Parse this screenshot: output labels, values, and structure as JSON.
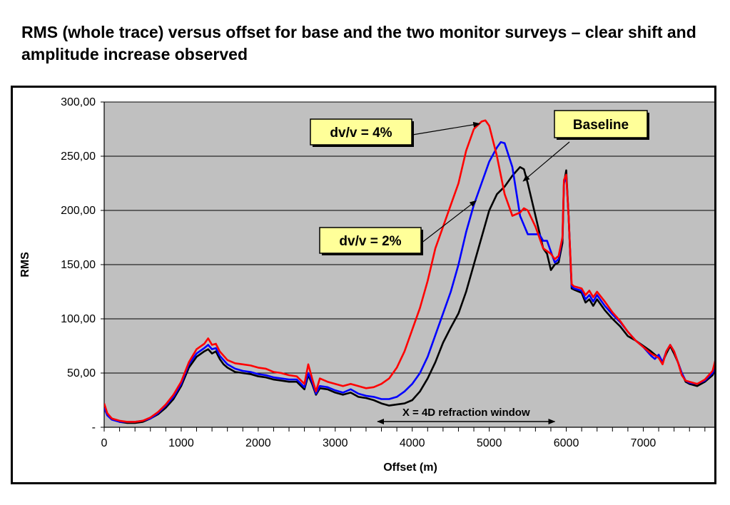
{
  "title": "RMS (whole trace) versus offset for base and the two monitor surveys – clear shift and amplitude increase observed",
  "chart_data": {
    "type": "line",
    "xlabel": "Offset (m)",
    "ylabel": "RMS",
    "xlim": [
      0,
      7950
    ],
    "ylim": [
      0,
      300
    ],
    "x_ticks": [
      "0",
      "1000",
      "2000",
      "3000",
      "4000",
      "5000",
      "6000",
      "7000"
    ],
    "y_ticks": [
      "-",
      "50,00",
      "100,00",
      "150,00",
      "200,00",
      "250,00",
      "300,00"
    ],
    "grid": "horizontal",
    "plot_background": "#c0c0c0",
    "series": [
      {
        "name": "Baseline",
        "color": "#000000",
        "points": [
          [
            0,
            20
          ],
          [
            40,
            12
          ],
          [
            100,
            8
          ],
          [
            200,
            5
          ],
          [
            300,
            4
          ],
          [
            400,
            4
          ],
          [
            500,
            5
          ],
          [
            600,
            8
          ],
          [
            700,
            12
          ],
          [
            800,
            18
          ],
          [
            900,
            26
          ],
          [
            1000,
            38
          ],
          [
            1100,
            55
          ],
          [
            1200,
            65
          ],
          [
            1300,
            70
          ],
          [
            1350,
            72
          ],
          [
            1400,
            68
          ],
          [
            1450,
            70
          ],
          [
            1500,
            63
          ],
          [
            1550,
            58
          ],
          [
            1600,
            55
          ],
          [
            1700,
            51
          ],
          [
            1800,
            50
          ],
          [
            1900,
            49
          ],
          [
            2000,
            47
          ],
          [
            2100,
            46
          ],
          [
            2200,
            44
          ],
          [
            2300,
            43
          ],
          [
            2400,
            42
          ],
          [
            2500,
            42
          ],
          [
            2600,
            35
          ],
          [
            2650,
            48
          ],
          [
            2700,
            40
          ],
          [
            2750,
            30
          ],
          [
            2800,
            36
          ],
          [
            2900,
            35
          ],
          [
            3000,
            32
          ],
          [
            3100,
            30
          ],
          [
            3200,
            32
          ],
          [
            3300,
            28
          ],
          [
            3400,
            27
          ],
          [
            3500,
            25
          ],
          [
            3600,
            22
          ],
          [
            3700,
            20
          ],
          [
            3800,
            21
          ],
          [
            3900,
            22
          ],
          [
            4000,
            25
          ],
          [
            4100,
            33
          ],
          [
            4200,
            45
          ],
          [
            4300,
            60
          ],
          [
            4400,
            78
          ],
          [
            4500,
            92
          ],
          [
            4600,
            105
          ],
          [
            4700,
            125
          ],
          [
            4800,
            150
          ],
          [
            4900,
            175
          ],
          [
            5000,
            200
          ],
          [
            5100,
            215
          ],
          [
            5200,
            222
          ],
          [
            5300,
            232
          ],
          [
            5400,
            240
          ],
          [
            5450,
            238
          ],
          [
            5500,
            225
          ],
          [
            5600,
            195
          ],
          [
            5700,
            165
          ],
          [
            5750,
            160
          ],
          [
            5800,
            145
          ],
          [
            5850,
            150
          ],
          [
            5900,
            152
          ],
          [
            5950,
            170
          ],
          [
            5970,
            225
          ],
          [
            6000,
            237
          ],
          [
            6030,
            195
          ],
          [
            6070,
            128
          ],
          [
            6100,
            127
          ],
          [
            6200,
            124
          ],
          [
            6250,
            115
          ],
          [
            6300,
            118
          ],
          [
            6350,
            112
          ],
          [
            6400,
            118
          ],
          [
            6500,
            108
          ],
          [
            6600,
            100
          ],
          [
            6700,
            93
          ],
          [
            6800,
            84
          ],
          [
            6900,
            80
          ],
          [
            7000,
            75
          ],
          [
            7100,
            70
          ],
          [
            7200,
            64
          ],
          [
            7250,
            60
          ],
          [
            7300,
            68
          ],
          [
            7350,
            75
          ],
          [
            7400,
            68
          ],
          [
            7450,
            60
          ],
          [
            7500,
            50
          ],
          [
            7550,
            42
          ],
          [
            7600,
            40
          ],
          [
            7700,
            38
          ],
          [
            7800,
            42
          ],
          [
            7900,
            48
          ],
          [
            7950,
            56
          ]
        ]
      },
      {
        "name": "dv/v = 2%",
        "color": "#0000ff",
        "points": [
          [
            0,
            18
          ],
          [
            40,
            11
          ],
          [
            100,
            7
          ],
          [
            200,
            5
          ],
          [
            300,
            5
          ],
          [
            400,
            5
          ],
          [
            500,
            6
          ],
          [
            600,
            8
          ],
          [
            700,
            13
          ],
          [
            800,
            20
          ],
          [
            900,
            28
          ],
          [
            1000,
            40
          ],
          [
            1100,
            58
          ],
          [
            1200,
            68
          ],
          [
            1300,
            73
          ],
          [
            1350,
            76
          ],
          [
            1400,
            72
          ],
          [
            1450,
            73
          ],
          [
            1500,
            66
          ],
          [
            1550,
            62
          ],
          [
            1600,
            58
          ],
          [
            1700,
            54
          ],
          [
            1800,
            52
          ],
          [
            1900,
            51
          ],
          [
            2000,
            49
          ],
          [
            2100,
            48
          ],
          [
            2200,
            46
          ],
          [
            2300,
            45
          ],
          [
            2400,
            44
          ],
          [
            2500,
            44
          ],
          [
            2600,
            37
          ],
          [
            2650,
            50
          ],
          [
            2700,
            42
          ],
          [
            2750,
            31
          ],
          [
            2800,
            38
          ],
          [
            2900,
            37
          ],
          [
            3000,
            34
          ],
          [
            3100,
            32
          ],
          [
            3200,
            35
          ],
          [
            3300,
            31
          ],
          [
            3400,
            29
          ],
          [
            3500,
            28
          ],
          [
            3600,
            26
          ],
          [
            3700,
            26
          ],
          [
            3800,
            28
          ],
          [
            3900,
            33
          ],
          [
            4000,
            40
          ],
          [
            4100,
            50
          ],
          [
            4200,
            65
          ],
          [
            4300,
            85
          ],
          [
            4400,
            105
          ],
          [
            4500,
            125
          ],
          [
            4600,
            150
          ],
          [
            4700,
            180
          ],
          [
            4800,
            205
          ],
          [
            4900,
            225
          ],
          [
            5000,
            245
          ],
          [
            5100,
            258
          ],
          [
            5150,
            263
          ],
          [
            5200,
            262
          ],
          [
            5300,
            240
          ],
          [
            5400,
            195
          ],
          [
            5500,
            178
          ],
          [
            5600,
            178
          ],
          [
            5650,
            178
          ],
          [
            5700,
            172
          ],
          [
            5750,
            172
          ],
          [
            5800,
            162
          ],
          [
            5850,
            152
          ],
          [
            5900,
            155
          ],
          [
            5950,
            175
          ],
          [
            5970,
            225
          ],
          [
            6000,
            232
          ],
          [
            6030,
            195
          ],
          [
            6070,
            130
          ],
          [
            6100,
            128
          ],
          [
            6200,
            126
          ],
          [
            6250,
            118
          ],
          [
            6300,
            122
          ],
          [
            6350,
            116
          ],
          [
            6400,
            122
          ],
          [
            6500,
            112
          ],
          [
            6600,
            104
          ],
          [
            6700,
            97
          ],
          [
            6800,
            88
          ],
          [
            6900,
            80
          ],
          [
            7000,
            74
          ],
          [
            7100,
            66
          ],
          [
            7150,
            63
          ],
          [
            7200,
            67
          ],
          [
            7250,
            60
          ],
          [
            7300,
            70
          ],
          [
            7350,
            76
          ],
          [
            7400,
            70
          ],
          [
            7450,
            60
          ],
          [
            7500,
            50
          ],
          [
            7550,
            43
          ],
          [
            7600,
            41
          ],
          [
            7700,
            40
          ],
          [
            7800,
            43
          ],
          [
            7900,
            50
          ],
          [
            7950,
            58
          ]
        ]
      },
      {
        "name": "dv/v = 4%",
        "color": "#ff0000",
        "points": [
          [
            0,
            22
          ],
          [
            40,
            13
          ],
          [
            100,
            8
          ],
          [
            200,
            6
          ],
          [
            300,
            5
          ],
          [
            400,
            5
          ],
          [
            500,
            6
          ],
          [
            600,
            9
          ],
          [
            700,
            14
          ],
          [
            800,
            21
          ],
          [
            900,
            30
          ],
          [
            1000,
            42
          ],
          [
            1100,
            60
          ],
          [
            1200,
            72
          ],
          [
            1300,
            77
          ],
          [
            1350,
            82
          ],
          [
            1400,
            76
          ],
          [
            1450,
            77
          ],
          [
            1500,
            70
          ],
          [
            1550,
            66
          ],
          [
            1600,
            62
          ],
          [
            1700,
            59
          ],
          [
            1800,
            58
          ],
          [
            1900,
            57
          ],
          [
            2000,
            55
          ],
          [
            2100,
            54
          ],
          [
            2200,
            51
          ],
          [
            2300,
            50
          ],
          [
            2400,
            48
          ],
          [
            2500,
            47
          ],
          [
            2600,
            40
          ],
          [
            2650,
            58
          ],
          [
            2700,
            45
          ],
          [
            2750,
            33
          ],
          [
            2800,
            45
          ],
          [
            2900,
            42
          ],
          [
            3000,
            40
          ],
          [
            3100,
            38
          ],
          [
            3200,
            40
          ],
          [
            3300,
            38
          ],
          [
            3400,
            36
          ],
          [
            3500,
            37
          ],
          [
            3600,
            40
          ],
          [
            3700,
            45
          ],
          [
            3800,
            55
          ],
          [
            3900,
            70
          ],
          [
            4000,
            90
          ],
          [
            4100,
            110
          ],
          [
            4200,
            135
          ],
          [
            4300,
            165
          ],
          [
            4400,
            185
          ],
          [
            4500,
            205
          ],
          [
            4600,
            225
          ],
          [
            4700,
            255
          ],
          [
            4800,
            275
          ],
          [
            4900,
            282
          ],
          [
            4950,
            283
          ],
          [
            5000,
            278
          ],
          [
            5100,
            250
          ],
          [
            5200,
            215
          ],
          [
            5300,
            195
          ],
          [
            5400,
            198
          ],
          [
            5450,
            202
          ],
          [
            5500,
            200
          ],
          [
            5600,
            185
          ],
          [
            5700,
            165
          ],
          [
            5800,
            160
          ],
          [
            5850,
            155
          ],
          [
            5900,
            158
          ],
          [
            5950,
            175
          ],
          [
            5970,
            228
          ],
          [
            6000,
            233
          ],
          [
            6030,
            195
          ],
          [
            6070,
            132
          ],
          [
            6100,
            130
          ],
          [
            6200,
            128
          ],
          [
            6250,
            122
          ],
          [
            6300,
            126
          ],
          [
            6350,
            120
          ],
          [
            6400,
            125
          ],
          [
            6500,
            116
          ],
          [
            6600,
            106
          ],
          [
            6700,
            98
          ],
          [
            6800,
            88
          ],
          [
            6900,
            80
          ],
          [
            7000,
            74
          ],
          [
            7100,
            68
          ],
          [
            7200,
            64
          ],
          [
            7250,
            58
          ],
          [
            7300,
            70
          ],
          [
            7350,
            76
          ],
          [
            7400,
            70
          ],
          [
            7450,
            60
          ],
          [
            7500,
            48
          ],
          [
            7550,
            43
          ],
          [
            7600,
            42
          ],
          [
            7700,
            40
          ],
          [
            7800,
            44
          ],
          [
            7900,
            52
          ],
          [
            7950,
            66
          ]
        ]
      }
    ],
    "annotations": {
      "label_4pct": "dv/v = 4%",
      "label_2pct": "dv/v = 2%",
      "label_baseline": "Baseline",
      "window_label": "X = 4D refraction window",
      "window_range": [
        3550,
        5850
      ],
      "callout_fill": "#ffff99"
    }
  }
}
